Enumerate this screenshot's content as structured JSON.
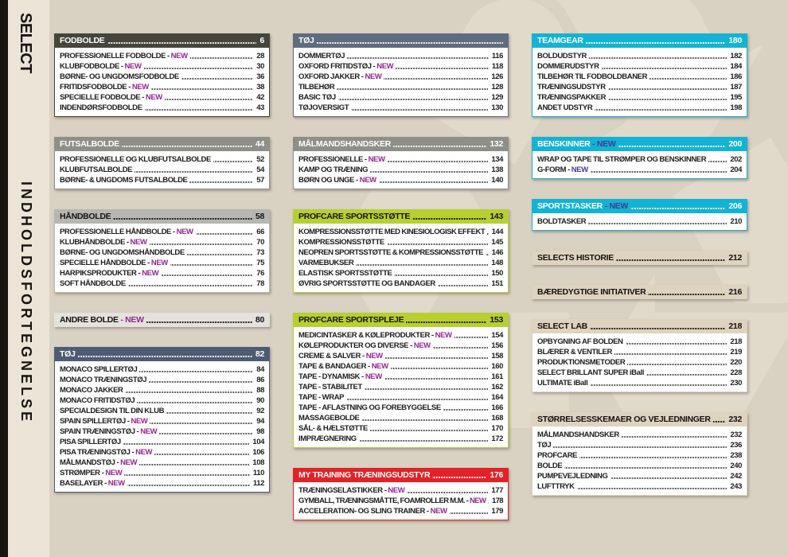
{
  "sidebar": {
    "brand": "SELECT",
    "title": "INDHOLDSFORTEGNELSE"
  },
  "theme": {
    "page_bg": "#d9d1c2",
    "sidebar_bg": "#ebe4d7",
    "sidebar_strip": "#171411",
    "new_color": "#92278f",
    "new_color_on_cyan": "#3f3b96",
    "watermark_icon": "recycle-symbol",
    "watermark_glyph": "♻"
  },
  "columns": [
    {
      "sections": [
        {
          "title": "FODBOLDE",
          "page": "6",
          "color": "#45453c",
          "text_color": "#ffffff",
          "items": [
            {
              "label": "PROFESSIONELLE FODBOLDE",
              "new": true,
              "page": "28"
            },
            {
              "label": "KLUBFODBOLDE",
              "new": true,
              "page": "30"
            },
            {
              "label": "BØRNE- OG UNGDOMSFODBOLDE",
              "new": false,
              "page": "36"
            },
            {
              "label": "FRITIDSFODBOLDE",
              "new": true,
              "page": "38"
            },
            {
              "label": "SPECIELLE FODBOLDE",
              "new": true,
              "page": "42"
            },
            {
              "label": "INDENDØRSFODBOLDE",
              "new": false,
              "page": "43"
            }
          ]
        },
        {
          "title": "FUTSALBOLDE",
          "page": "44",
          "color": "#8e8f89",
          "text_color": "#ffffff",
          "items": [
            {
              "label": "PROFESSIONELLE OG KLUBFUTSALBOLDE",
              "new": false,
              "page": "52"
            },
            {
              "label": "KLUBFUTSALBOLDE",
              "new": false,
              "page": "54"
            },
            {
              "label": "BØRNE- & UNGDOMS FUTSALBOLDE",
              "new": false,
              "page": "57"
            }
          ]
        },
        {
          "title": "HÅNDBOLDE",
          "page": "58",
          "color": "#b6b7b1",
          "text_color": "#14110e",
          "items": [
            {
              "label": "PROFESSIONELLE HÅNDBOLDE",
              "new": true,
              "page": "66"
            },
            {
              "label": "KLUBHÅNDBOLDE",
              "new": true,
              "page": "70"
            },
            {
              "label": "BØRNE- OG UNGDOMSHÅNDBOLDE",
              "new": false,
              "page": "73"
            },
            {
              "label": "SPECIELLE HÅNDBOLDE",
              "new": true,
              "page": "75"
            },
            {
              "label": "HARPIKSPRODUKTER",
              "new": true,
              "page": "76"
            },
            {
              "label": "SOFT HÅNDBOLDE",
              "new": false,
              "page": "78"
            }
          ]
        },
        {
          "title": "ANDRE BOLDE",
          "title_new": true,
          "page": "80",
          "color": "#e3e2de",
          "text_color": "#14110e",
          "items": []
        },
        {
          "title": "TØJ",
          "page": "82",
          "color": "#4d5c72",
          "text_color": "#ffffff",
          "items": [
            {
              "label": "MONACO SPILLERTØJ",
              "new": false,
              "page": "84"
            },
            {
              "label": "MONACO TRÆNINGSTØJ",
              "new": false,
              "page": "86"
            },
            {
              "label": "MONACO JAKKER",
              "new": false,
              "page": "88"
            },
            {
              "label": "MONACO FRITIDSTØJ",
              "new": false,
              "page": "90"
            },
            {
              "label": "SPECIALDESIGN TIL DIN KLUB",
              "new": false,
              "page": "92"
            },
            {
              "label": "SPAIN SPILLERTØJ",
              "new": true,
              "page": "94"
            },
            {
              "label": "SPAIN TRÆNINGSTØJ",
              "new": true,
              "page": "98"
            },
            {
              "label": "PISA SPILLERTØJ",
              "new": false,
              "page": "104"
            },
            {
              "label": "PISA TRÆNINGSTØJ",
              "new": true,
              "page": "106"
            },
            {
              "label": "MÅLMANDSTØJ",
              "new": true,
              "page": "108"
            },
            {
              "label": "STRØMPER",
              "new": true,
              "page": "110"
            },
            {
              "label": "BASELAYER",
              "new": true,
              "page": "112"
            }
          ]
        }
      ]
    },
    {
      "sections": [
        {
          "title": "TØJ",
          "page": "",
          "color": "#5e6c7e",
          "text_color": "#ffffff",
          "items": [
            {
              "label": "DOMMERTØJ",
              "new": false,
              "page": "116"
            },
            {
              "label": "OXFORD FRITIDSTØJ",
              "new": true,
              "page": "118"
            },
            {
              "label": "OXFORD JAKKER",
              "new": true,
              "page": "126"
            },
            {
              "label": "TILBEHØR",
              "new": false,
              "page": "128"
            },
            {
              "label": "BASIC TØJ",
              "new": false,
              "page": "129"
            },
            {
              "label": "TØJOVERSIGT",
              "new": false,
              "page": "130"
            }
          ]
        },
        {
          "title": "MÅLMANDSHANDSKER",
          "page": "132",
          "color": "#8e8f89",
          "text_color": "#ffffff",
          "items": [
            {
              "label": "PROFESSIONELLE",
              "new": true,
              "page": "134"
            },
            {
              "label": "KAMP OG TRÆNING",
              "new": false,
              "page": "138"
            },
            {
              "label": "BØRN OG UNGE",
              "new": true,
              "page": "140"
            }
          ]
        },
        {
          "title": "PROFCARE SPORTSSTØTTE",
          "page": "143",
          "color": "#b7d02f",
          "text_color": "#14110e",
          "items": [
            {
              "label": "KOMPRESSIONSSTØTTE MED KINESIOLOGISK EFFEKT",
              "new": false,
              "page": "144"
            },
            {
              "label": "KOMPRESSIONSSTØTTE",
              "new": false,
              "page": "145"
            },
            {
              "label": "NEOPREN SPORTSSTØTTE & KOMPRESSIONSSTØTTE",
              "new": false,
              "page": "146"
            },
            {
              "label": "VARMEBUKSER",
              "new": false,
              "page": "148"
            },
            {
              "label": "ELASTISK SPORTSSTØTTE",
              "new": false,
              "page": "150"
            },
            {
              "label": "ØVRIG SPORTSSTØTTE OG BANDAGER",
              "new": false,
              "page": "151"
            }
          ]
        },
        {
          "title": "PROFCARE SPORTSPLEJE",
          "page": "153",
          "color": "#b7d02f",
          "text_color": "#14110e",
          "items": [
            {
              "label": "MEDICINTASKER & KØLEPRODUKTER",
              "new": true,
              "page": "154"
            },
            {
              "label": "KØLEPRODUKTER OG DIVERSE",
              "new": true,
              "page": "156"
            },
            {
              "label": "CREME & SALVER",
              "new": true,
              "page": "158"
            },
            {
              "label": "TAPE & BANDAGER",
              "new": true,
              "page": "160"
            },
            {
              "label": "TAPE - DYNAMISK",
              "new": true,
              "page": "161"
            },
            {
              "label": "TAPE - STABILITET",
              "new": false,
              "page": "162"
            },
            {
              "label": "TAPE - WRAP",
              "new": false,
              "page": "164"
            },
            {
              "label": "TAPE - AFLASTNING OG FOREBYGGELSE",
              "new": false,
              "page": "166"
            },
            {
              "label": "MASSAGEBOLDE",
              "new": false,
              "page": "168"
            },
            {
              "label": "SÅL- & HÆLSTØTTE",
              "new": false,
              "page": "170"
            },
            {
              "label": "IMPRÆGNERING",
              "new": false,
              "page": "172"
            }
          ]
        },
        {
          "title": "MY TRAINING TRÆNINGSUDSTYR",
          "page": "176",
          "color": "#e32128",
          "text_color": "#ffffff",
          "items": [
            {
              "label": "TRÆNINGSELASTIKKER",
              "new": true,
              "page": "177"
            },
            {
              "label": "GYMBALL, TRÆNINGSMÅTTE, FOAMROLLER M.M.",
              "new": true,
              "page": "178"
            },
            {
              "label": "ACCELERATION- OG SLING TRAINER",
              "new": true,
              "page": "179"
            }
          ]
        }
      ]
    },
    {
      "sections": [
        {
          "title": "TEAMGEAR",
          "page": "180",
          "color": "#12b3d4",
          "text_color": "#ffffff",
          "items": [
            {
              "label": "BOLDUDSTYR",
              "new": false,
              "page": "182"
            },
            {
              "label": "DOMMERUDSTYR",
              "new": false,
              "page": "184"
            },
            {
              "label": "TILBEHØR TIL FODBOLDBANER",
              "new": false,
              "page": "186"
            },
            {
              "label": "TRÆNINGSUDSTYR",
              "new": false,
              "page": "187"
            },
            {
              "label": "TRÆNINGSPAKKER",
              "new": false,
              "page": "195"
            },
            {
              "label": "ANDET UDSTYR",
              "new": false,
              "page": "198"
            }
          ]
        },
        {
          "title": "BENSKINNER",
          "title_new": true,
          "page": "200",
          "color": "#12b3d4",
          "text_color": "#ffffff",
          "new_color": "#3f3b96",
          "items": [
            {
              "label": "WRAP OG TAPE TIL STRØMPER OG BENSKINNER",
              "new": false,
              "page": "202"
            },
            {
              "label": "G-FORM",
              "new": true,
              "page": "204"
            }
          ]
        },
        {
          "title": "SPORTSTASKER",
          "title_new": true,
          "page": "206",
          "color": "#12b3d4",
          "text_color": "#ffffff",
          "new_color": "#3f3b96",
          "items": [
            {
              "label": "BOLDTASKER",
              "new": false,
              "page": "210"
            }
          ]
        },
        {
          "title": "SELECTS HISTORIE",
          "page": "212",
          "color": "#ded3bf",
          "text_color": "#14110e",
          "items": []
        },
        {
          "title": "BÆREDYGTIGE INITIATIVER",
          "page": "216",
          "color": "#ded3bf",
          "text_color": "#14110e",
          "items": []
        },
        {
          "title": "SELECT LAB",
          "page": "218",
          "color": "#ded3bf",
          "text_color": "#14110e",
          "items": [
            {
              "label": "OPBYGNING AF BOLDEN",
              "new": false,
              "page": "218"
            },
            {
              "label": "BLÆRER & VENTILER",
              "new": false,
              "page": "219"
            },
            {
              "label": "PRODUKTIONSMETODER",
              "new": false,
              "page": "220"
            },
            {
              "label": "SELECT BRILLANT SUPER iBall",
              "new": false,
              "page": "228"
            },
            {
              "label": "ULTIMATE iBall",
              "new": false,
              "page": "230"
            }
          ]
        },
        {
          "title": "STØRRELSESSKEMAER OG VEJLEDNINGER",
          "page": "232",
          "color": "#ded3bf",
          "text_color": "#14110e",
          "items": [
            {
              "label": "MÅLMANDSHANDSKER",
              "new": false,
              "page": "232"
            },
            {
              "label": "TØJ",
              "new": false,
              "page": "236"
            },
            {
              "label": "PROFCARE",
              "new": false,
              "page": "238"
            },
            {
              "label": "BOLDE",
              "new": false,
              "page": "240"
            },
            {
              "label": "PUMPEVEJLEDNING",
              "new": false,
              "page": "242"
            },
            {
              "label": "LUFTTRYK",
              "new": false,
              "page": "243"
            }
          ]
        }
      ]
    }
  ]
}
